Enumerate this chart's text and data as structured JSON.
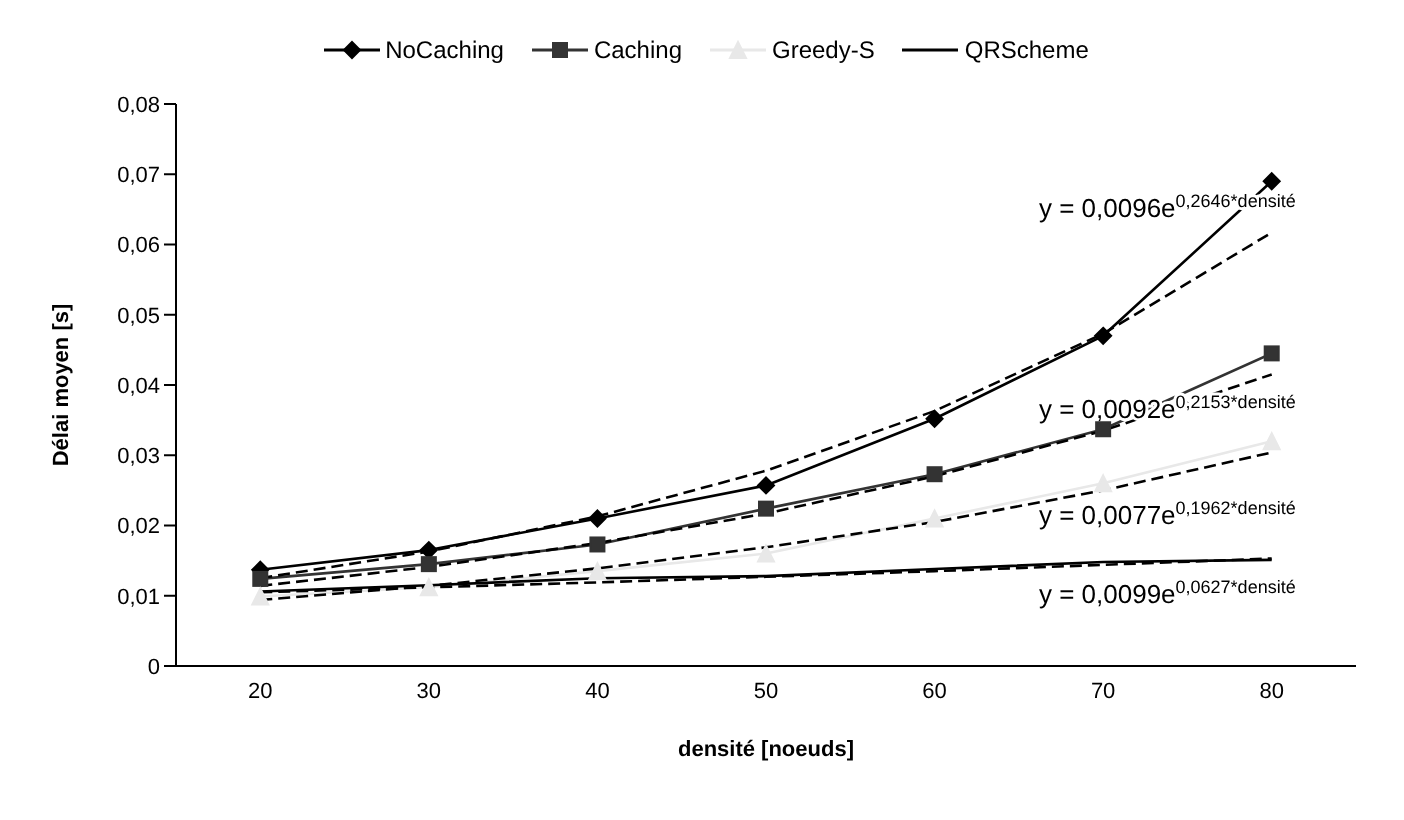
{
  "chart_data": {
    "type": "line",
    "xlabel": "densité [noeuds]",
    "ylabel": "Délai moyen [s]",
    "x": [
      20,
      30,
      40,
      50,
      60,
      70,
      80
    ],
    "series": [
      {
        "name": "NoCaching",
        "color": "#000000",
        "marker": "diamond",
        "values": [
          0.0137,
          0.0165,
          0.021,
          0.0257,
          0.0352,
          0.047,
          0.069
        ]
      },
      {
        "name": "Caching",
        "color": "#333333",
        "marker": "square",
        "values": [
          0.0124,
          0.0145,
          0.0173,
          0.0224,
          0.0273,
          0.0337,
          0.0445
        ]
      },
      {
        "name": "Greedy-S",
        "color": "#e8e8e8",
        "marker": "triangle",
        "values": [
          0.0099,
          0.0112,
          0.0135,
          0.016,
          0.021,
          0.026,
          0.032
        ]
      },
      {
        "name": "QRScheme",
        "color": "#000000",
        "marker": "none",
        "values": [
          0.0106,
          0.0115,
          0.0125,
          0.0128,
          0.0138,
          0.0148,
          0.0151
        ]
      },
      {
        "type": "line",
        "color": "#000000",
        "line_style": "dashed",
        "marker": "none",
        "x": [
          20,
          30,
          40,
          50,
          60,
          70,
          80
        ],
        "values": [
          0.0125,
          0.0163,
          0.0213,
          0.0278,
          0.0363,
          0.0473,
          0.0617
        ]
      },
      {
        "type": "line",
        "color": "#000000",
        "line_style": "dashed",
        "marker": "none",
        "x": [
          20,
          30,
          40,
          50,
          60,
          70,
          80
        ],
        "values": [
          0.0114,
          0.0141,
          0.0175,
          0.0217,
          0.027,
          0.0335,
          0.0415
        ]
      },
      {
        "type": "line",
        "color": "#000000",
        "line_style": "dashed",
        "marker": "none",
        "x": [
          20,
          30,
          40,
          50,
          60,
          70,
          80
        ],
        "values": [
          0.0094,
          0.0114,
          0.0139,
          0.0169,
          0.0205,
          0.025,
          0.0304
        ]
      },
      {
        "type": "line",
        "color": "#000000",
        "line_style": "dashed",
        "marker": "none",
        "x": [
          20,
          30,
          40,
          50,
          60,
          70,
          80
        ],
        "values": [
          0.0105,
          0.0112,
          0.0119,
          0.0127,
          0.0135,
          0.0144,
          0.0153
        ]
      }
    ],
    "xlim": [
      15,
      85
    ],
    "xticks": [
      20,
      30,
      40,
      50,
      60,
      70,
      80
    ],
    "ylim": [
      0,
      0.08
    ],
    "yticks": [
      {
        "value": 0,
        "label": "0"
      },
      {
        "value": 0.01,
        "label": "0,01"
      },
      {
        "value": 0.02,
        "label": "0,02"
      },
      {
        "value": 0.03,
        "label": "0,03"
      },
      {
        "value": 0.04,
        "label": "0,04"
      },
      {
        "value": 0.05,
        "label": "0,05"
      },
      {
        "value": 0.06,
        "label": "0,06"
      },
      {
        "value": 0.07,
        "label": "0,07"
      },
      {
        "value": 0.08,
        "label": "0,08"
      }
    ],
    "grid": false,
    "legend": "top",
    "annotations": [
      "y = 0,0096e$^{0,2646*densité}$",
      "y = 0,0092e$^{0,2153*densité}$",
      "y = 0,0077e$^{0,1962*densité}$",
      "y = 0,0099e$^{0,0627*densité}$"
    ]
  }
}
